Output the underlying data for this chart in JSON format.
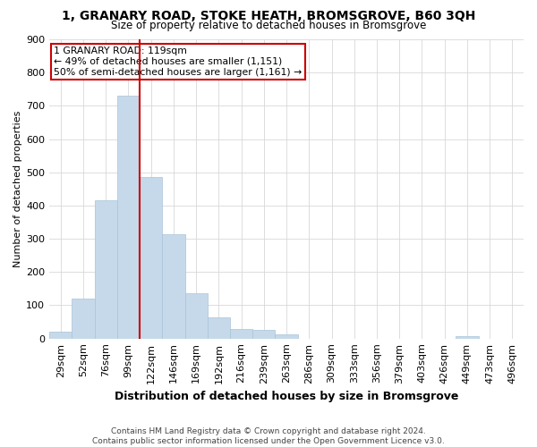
{
  "title": "1, GRANARY ROAD, STOKE HEATH, BROMSGROVE, B60 3QH",
  "subtitle": "Size of property relative to detached houses in Bromsgrove",
  "xlabel": "Distribution of detached houses by size in Bromsgrove",
  "ylabel": "Number of detached properties",
  "bar_color": "#c6d9ea",
  "bar_edge_color": "#a8c4d8",
  "categories": [
    "29sqm",
    "52sqm",
    "76sqm",
    "99sqm",
    "122sqm",
    "146sqm",
    "169sqm",
    "192sqm",
    "216sqm",
    "239sqm",
    "263sqm",
    "286sqm",
    "309sqm",
    "333sqm",
    "356sqm",
    "379sqm",
    "403sqm",
    "426sqm",
    "449sqm",
    "473sqm",
    "496sqm"
  ],
  "values": [
    20,
    120,
    415,
    730,
    485,
    315,
    135,
    65,
    30,
    25,
    12,
    0,
    0,
    0,
    0,
    0,
    0,
    0,
    8,
    0,
    0
  ],
  "red_line_x": 4,
  "annotation_line1": "1 GRANARY ROAD: 119sqm",
  "annotation_line2": "← 49% of detached houses are smaller (1,151)",
  "annotation_line3": "50% of semi-detached houses are larger (1,161) →",
  "annotation_box_color": "#ffffff",
  "annotation_box_edge": "#cc0000",
  "red_line_color": "#cc0000",
  "grid_color": "#d8d8d8",
  "background_color": "#ffffff",
  "footer": "Contains HM Land Registry data © Crown copyright and database right 2024.\nContains public sector information licensed under the Open Government Licence v3.0.",
  "ylim": [
    0,
    900
  ],
  "yticks": [
    0,
    100,
    200,
    300,
    400,
    500,
    600,
    700,
    800,
    900
  ]
}
